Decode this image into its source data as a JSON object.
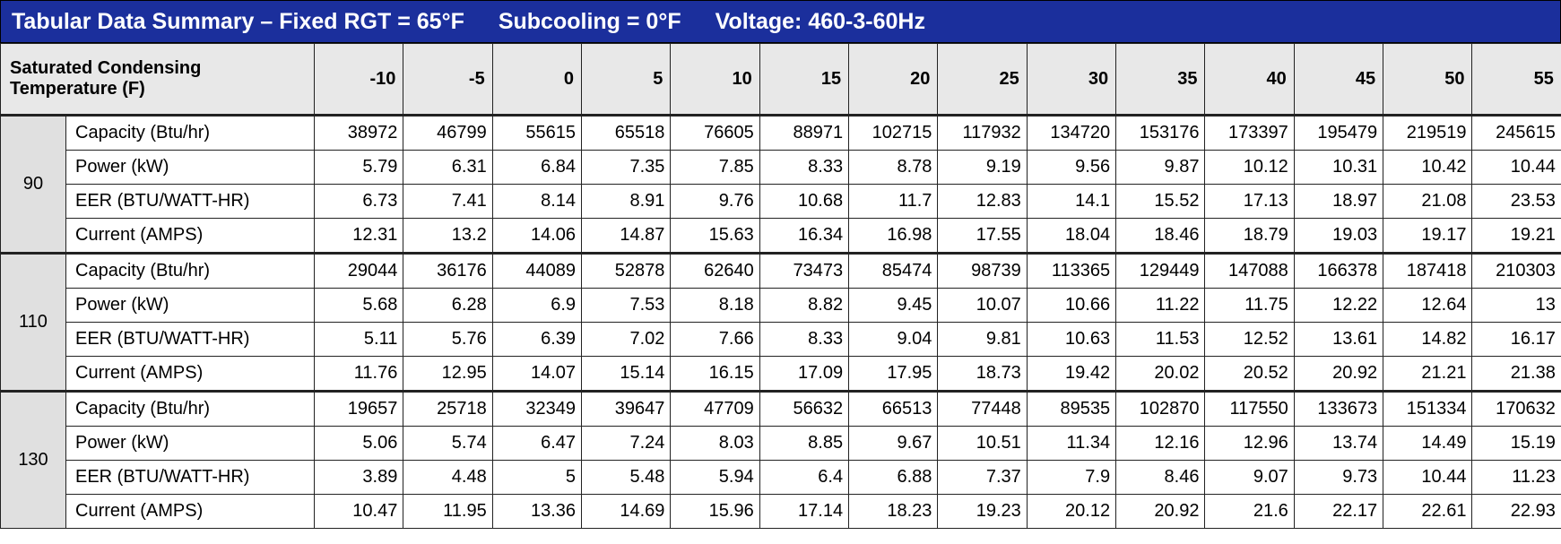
{
  "title": [
    "Tabular Data Summary – Fixed RGT = 65°F",
    "Subcooling = 0°F",
    "Voltage: 460-3-60Hz"
  ],
  "table": {
    "header": {
      "label": "Saturated Condensing Temperature (F)",
      "columns": [
        -10,
        -5,
        0,
        5,
        10,
        15,
        20,
        25,
        30,
        35,
        40,
        45,
        50,
        55
      ]
    },
    "groups": [
      {
        "label": "90",
        "rows": [
          {
            "label": "Capacity (Btu/hr)",
            "values": [
              38972,
              46799,
              55615,
              65518,
              76605,
              88971,
              102715,
              117932,
              134720,
              153176,
              173397,
              195479,
              219519,
              245615
            ]
          },
          {
            "label": "Power (kW)",
            "values": [
              5.79,
              6.31,
              6.84,
              7.35,
              7.85,
              8.33,
              8.78,
              9.19,
              9.56,
              9.87,
              10.12,
              10.31,
              10.42,
              10.44
            ]
          },
          {
            "label": "EER (BTU/WATT-HR)",
            "values": [
              6.73,
              7.41,
              8.14,
              8.91,
              9.76,
              10.68,
              11.7,
              12.83,
              14.1,
              15.52,
              17.13,
              18.97,
              21.08,
              23.53
            ]
          },
          {
            "label": "Current (AMPS)",
            "values": [
              12.31,
              13.2,
              14.06,
              14.87,
              15.63,
              16.34,
              16.98,
              17.55,
              18.04,
              18.46,
              18.79,
              19.03,
              19.17,
              19.21
            ]
          }
        ]
      },
      {
        "label": "110",
        "rows": [
          {
            "label": "Capacity (Btu/hr)",
            "values": [
              29044,
              36176,
              44089,
              52878,
              62640,
              73473,
              85474,
              98739,
              113365,
              129449,
              147088,
              166378,
              187418,
              210303
            ]
          },
          {
            "label": "Power (kW)",
            "values": [
              5.68,
              6.28,
              6.9,
              7.53,
              8.18,
              8.82,
              9.45,
              10.07,
              10.66,
              11.22,
              11.75,
              12.22,
              12.64,
              13
            ]
          },
          {
            "label": "EER (BTU/WATT-HR)",
            "values": [
              5.11,
              5.76,
              6.39,
              7.02,
              7.66,
              8.33,
              9.04,
              9.81,
              10.63,
              11.53,
              12.52,
              13.61,
              14.82,
              16.17
            ]
          },
          {
            "label": "Current (AMPS)",
            "values": [
              11.76,
              12.95,
              14.07,
              15.14,
              16.15,
              17.09,
              17.95,
              18.73,
              19.42,
              20.02,
              20.52,
              20.92,
              21.21,
              21.38
            ]
          }
        ]
      },
      {
        "label": "130",
        "rows": [
          {
            "label": "Capacity (Btu/hr)",
            "values": [
              19657,
              25718,
              32349,
              39647,
              47709,
              56632,
              66513,
              77448,
              89535,
              102870,
              117550,
              133673,
              151334,
              170632
            ]
          },
          {
            "label": "Power (kW)",
            "values": [
              5.06,
              5.74,
              6.47,
              7.24,
              8.03,
              8.85,
              9.67,
              10.51,
              11.34,
              12.16,
              12.96,
              13.74,
              14.49,
              15.19
            ]
          },
          {
            "label": "EER (BTU/WATT-HR)",
            "values": [
              3.89,
              4.48,
              5,
              5.48,
              5.94,
              6.4,
              6.88,
              7.37,
              7.9,
              8.46,
              9.07,
              9.73,
              10.44,
              11.23
            ]
          },
          {
            "label": "Current (AMPS)",
            "values": [
              10.47,
              11.95,
              13.36,
              14.69,
              15.96,
              17.14,
              18.23,
              19.23,
              20.12,
              20.92,
              21.6,
              22.17,
              22.61,
              22.93
            ]
          }
        ]
      }
    ]
  }
}
